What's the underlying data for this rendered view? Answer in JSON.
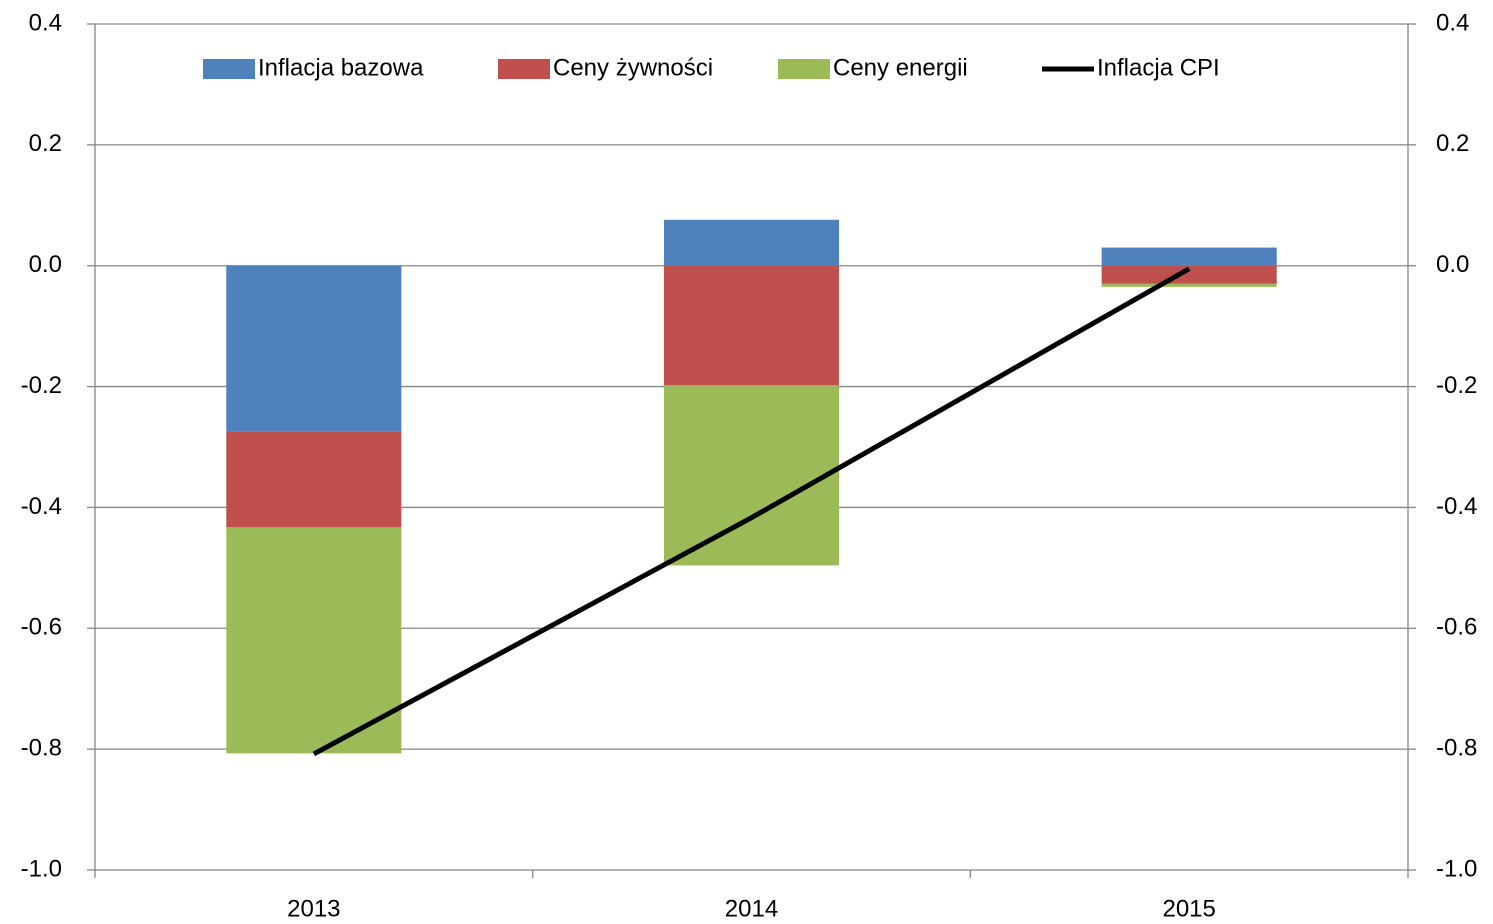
{
  "chart_data": {
    "type": "bar",
    "stacked": true,
    "categories": [
      "2013",
      "2014",
      "2015"
    ],
    "series": [
      {
        "name": "Inflacja bazowa",
        "type": "bar",
        "color": "#4f81bd",
        "values": [
          -0.274,
          0.076,
          0.03
        ]
      },
      {
        "name": "Ceny żywności",
        "type": "bar",
        "color": "#c0504d",
        "values": [
          -0.159,
          -0.198,
          -0.03
        ]
      },
      {
        "name": "Ceny energii",
        "type": "bar",
        "color": "#9bbb59",
        "values": [
          -0.374,
          -0.298,
          -0.005
        ]
      },
      {
        "name": "Inflacja CPI",
        "type": "line",
        "axis": "y2",
        "color": "#000000",
        "values": [
          -0.808,
          -0.417,
          -0.005
        ]
      }
    ],
    "ylim": [
      -1,
      0.4
    ],
    "yticks": [
      {
        "value": -1,
        "label": "-1.0"
      },
      -0.8,
      -0.6,
      -0.4,
      -0.2,
      {
        "value": 0,
        "label": "0.0"
      },
      0.2,
      0.4
    ],
    "y2lim": [
      -1,
      0.4
    ],
    "y2ticks": [
      {
        "value": -1,
        "label": "-1.0"
      },
      -0.8,
      -0.6,
      -0.4,
      -0.2,
      {
        "value": 0,
        "label": "0.0"
      },
      0.2,
      0.4
    ],
    "grid": true,
    "legend": "top"
  }
}
